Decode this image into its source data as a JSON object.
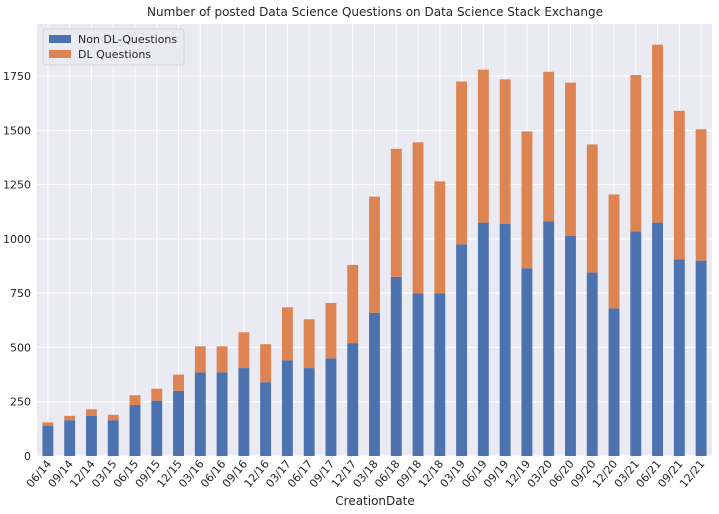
{
  "chart_data": {
    "type": "bar",
    "stacked": true,
    "title": "Number of posted Data Science Questions on Data Science Stack Exchange",
    "xlabel": "CreationDate",
    "ylabel": "",
    "ylim": [
      0,
      1990
    ],
    "yticks": [
      0,
      250,
      500,
      750,
      1000,
      1250,
      1500,
      1750
    ],
    "grid": true,
    "legend_position": "top-left",
    "categories": [
      "06/14",
      "09/14",
      "12/14",
      "03/15",
      "06/15",
      "09/15",
      "12/15",
      "03/16",
      "06/16",
      "09/16",
      "12/16",
      "03/17",
      "06/17",
      "09/17",
      "12/17",
      "03/18",
      "06/18",
      "09/18",
      "12/18",
      "03/19",
      "06/19",
      "09/19",
      "12/19",
      "03/20",
      "06/20",
      "09/20",
      "12/20",
      "03/21",
      "06/21",
      "09/21",
      "12/21"
    ],
    "series": [
      {
        "name": "Non DL-Questions",
        "color": "#4c72b0",
        "values": [
          140,
          165,
          185,
          165,
          235,
          255,
          300,
          385,
          385,
          405,
          340,
          440,
          405,
          450,
          520,
          660,
          825,
          750,
          750,
          975,
          1075,
          1070,
          865,
          1080,
          1015,
          845,
          680,
          1035,
          1075,
          905,
          900
        ]
      },
      {
        "name": "DL Questions",
        "color": "#dd8452",
        "values": [
          15,
          20,
          30,
          25,
          45,
          55,
          75,
          120,
          120,
          165,
          175,
          245,
          225,
          255,
          360,
          535,
          590,
          695,
          515,
          750,
          705,
          665,
          630,
          690,
          705,
          590,
          525,
          720,
          820,
          685,
          605
        ]
      }
    ],
    "colors": {
      "plot_background": "#eaeaf2",
      "grid": "#ffffff",
      "text": "#262626"
    }
  }
}
